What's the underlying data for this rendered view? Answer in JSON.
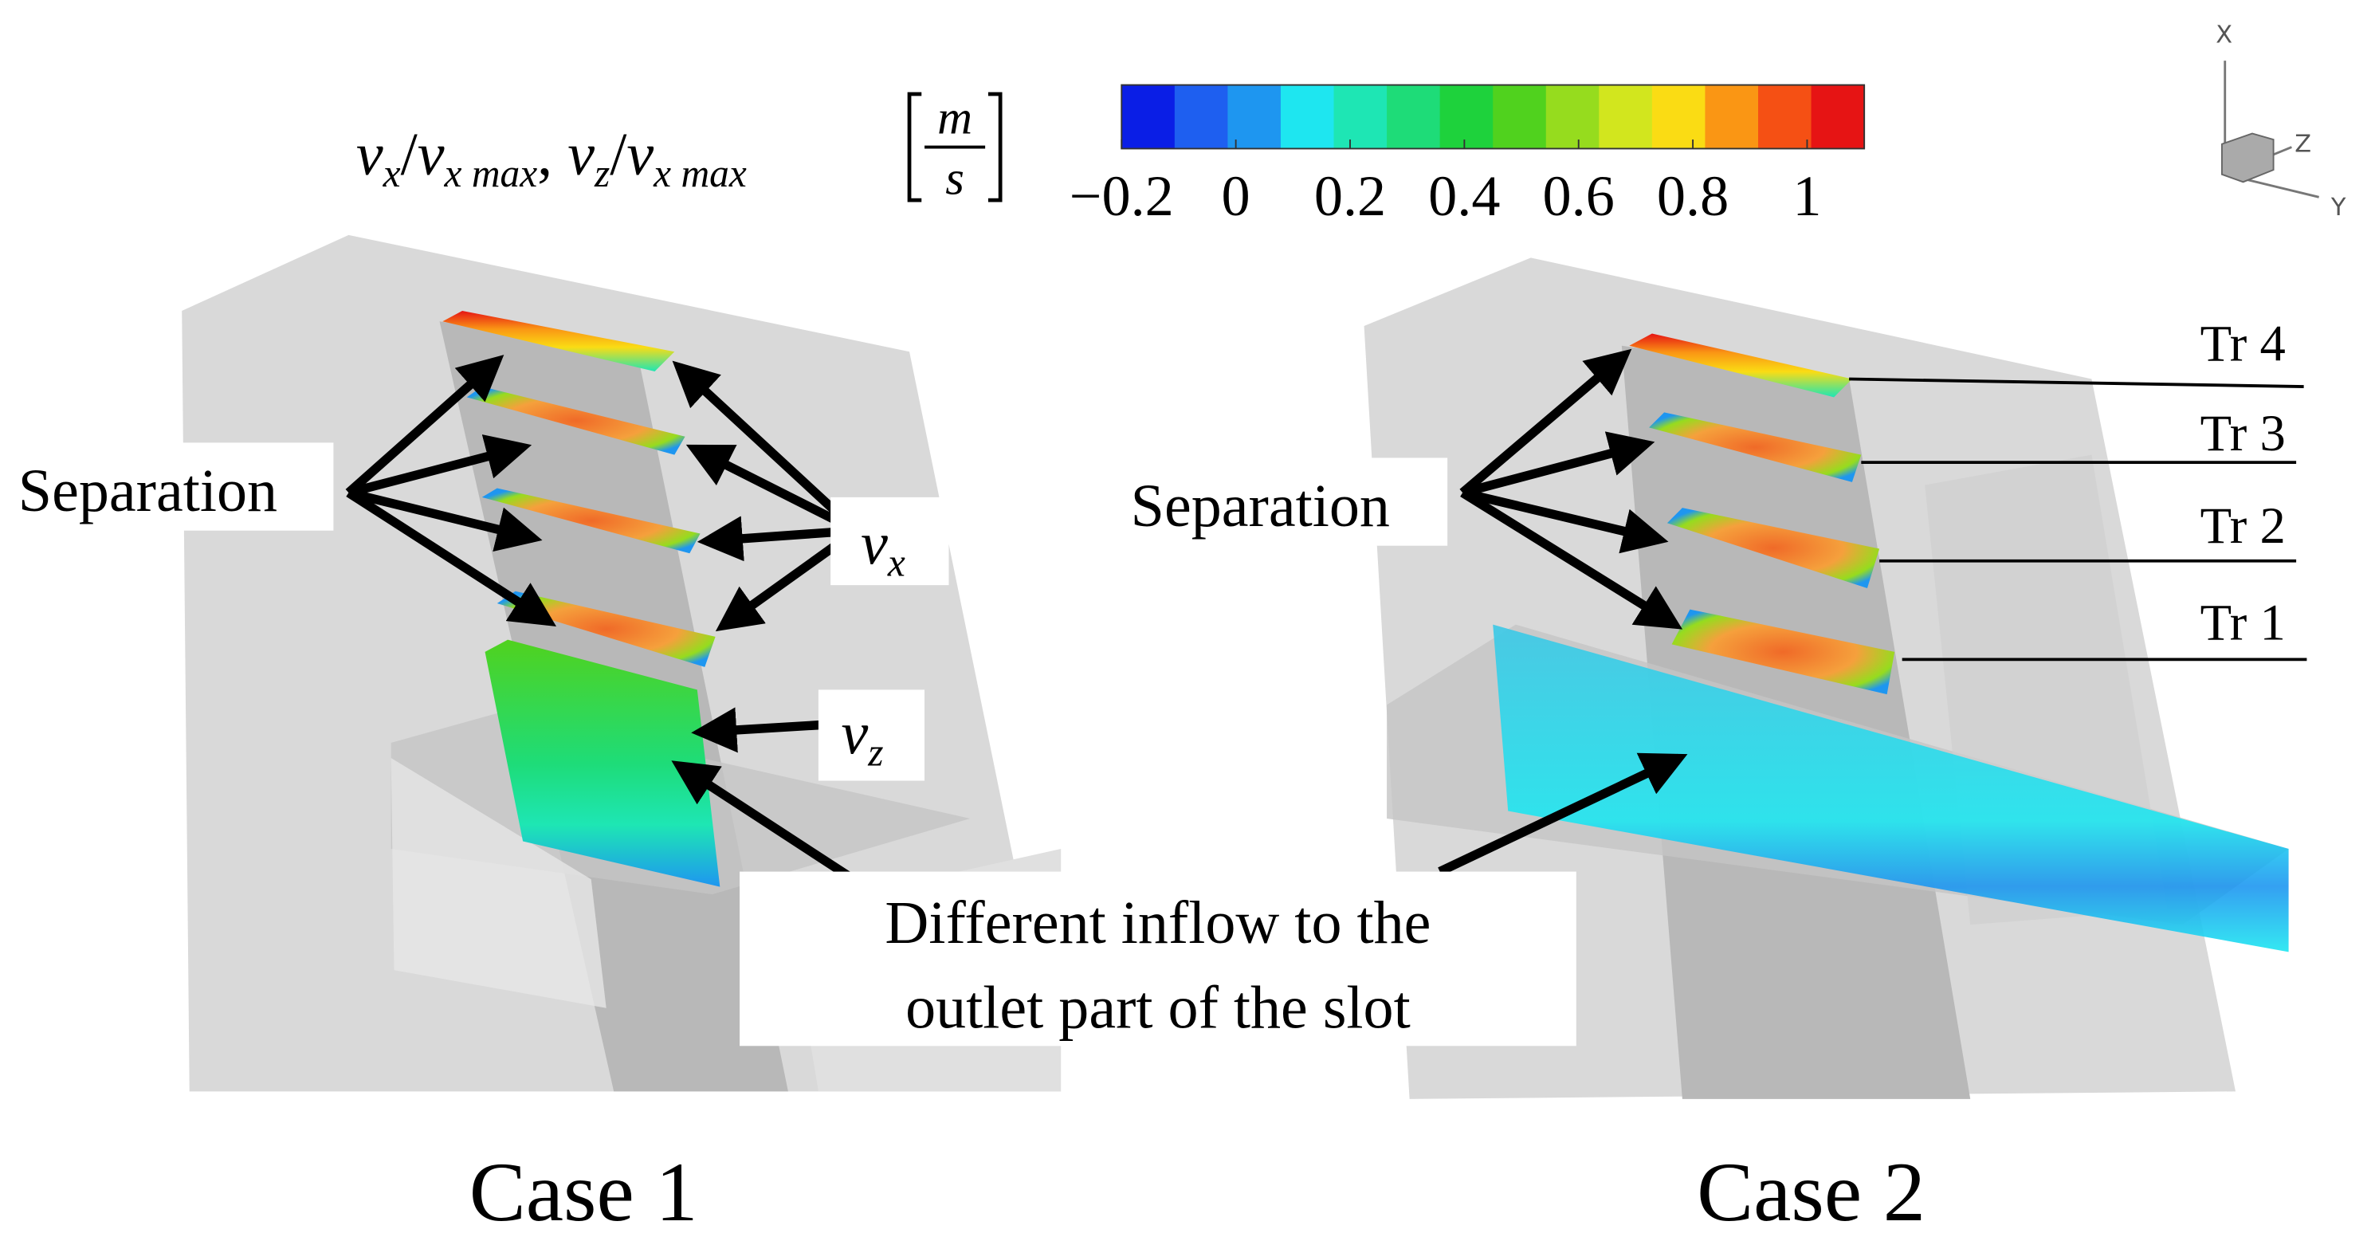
{
  "colorbar": {
    "label": [
      "v",
      "x",
      "/",
      "v",
      "x max",
      ", ",
      "v",
      "z",
      "/",
      "v",
      "x max"
    ],
    "unit": {
      "numerator": "m",
      "denominator": "s"
    },
    "range": [
      -0.2,
      1.1
    ],
    "colors": [
      "#0a1ee6",
      "#1e5ff0",
      "#1e96f0",
      "#1ee6f0",
      "#1ee6b4",
      "#1edc78",
      "#1ed23c",
      "#50d21e",
      "#96dc1e",
      "#d2e61e",
      "#fadc14",
      "#fa9614",
      "#f55014",
      "#e61414"
    ],
    "ticks": [
      {
        "value": -0.2,
        "label": "−0.2"
      },
      0,
      0.2,
      0.4,
      0.6,
      0.8,
      1
    ]
  },
  "axes_triad": {
    "x": "X",
    "y": "Y",
    "z": "Z"
  },
  "case1": {
    "title": "Case 1",
    "separation": "Separation",
    "vx": {
      "v": "v",
      "sub": "x"
    },
    "vz": {
      "v": "v",
      "sub": "z"
    }
  },
  "case2": {
    "title": "Case 2",
    "separation": "Separation",
    "traverses": [
      "Tr 4",
      "Tr 3",
      "Tr 2",
      "Tr 1"
    ]
  },
  "inflow_note": [
    "Different inflow to the",
    "outlet part of the slot"
  ]
}
